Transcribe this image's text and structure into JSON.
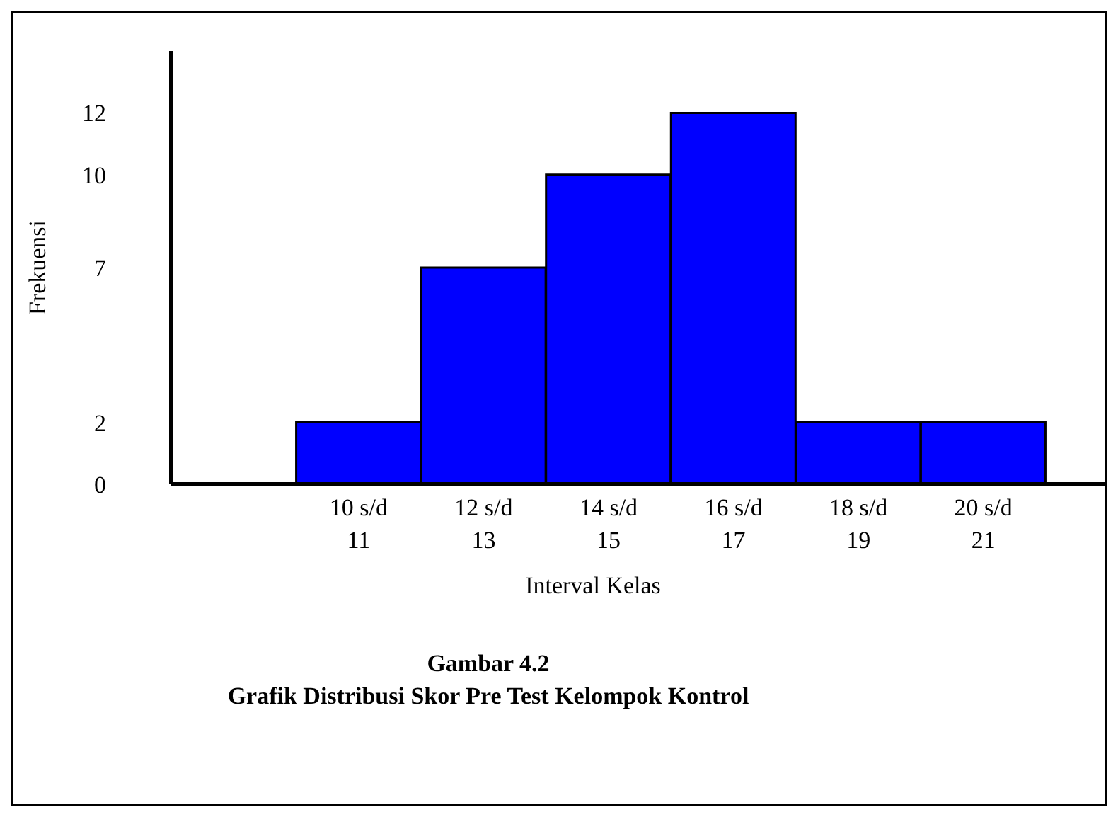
{
  "chart_data": {
    "type": "bar",
    "title": "Gambar 4.2",
    "subtitle": "Grafik Distribusi Skor Pre Test Kelompok Kontrol",
    "xlabel": "Interval Kelas",
    "ylabel": "Frekuensi",
    "categories": [
      null,
      "10 s/d 11",
      "12 s/d 13",
      "14 s/d 15",
      "16 s/d 17",
      "18 s/d 19",
      "20 s/d 21"
    ],
    "values": [
      null,
      2,
      7,
      10,
      12,
      2,
      2
    ],
    "color": "#0000ff",
    "ylim": [
      0,
      14
    ],
    "yticks": [
      0,
      2,
      7,
      10,
      12
    ]
  }
}
